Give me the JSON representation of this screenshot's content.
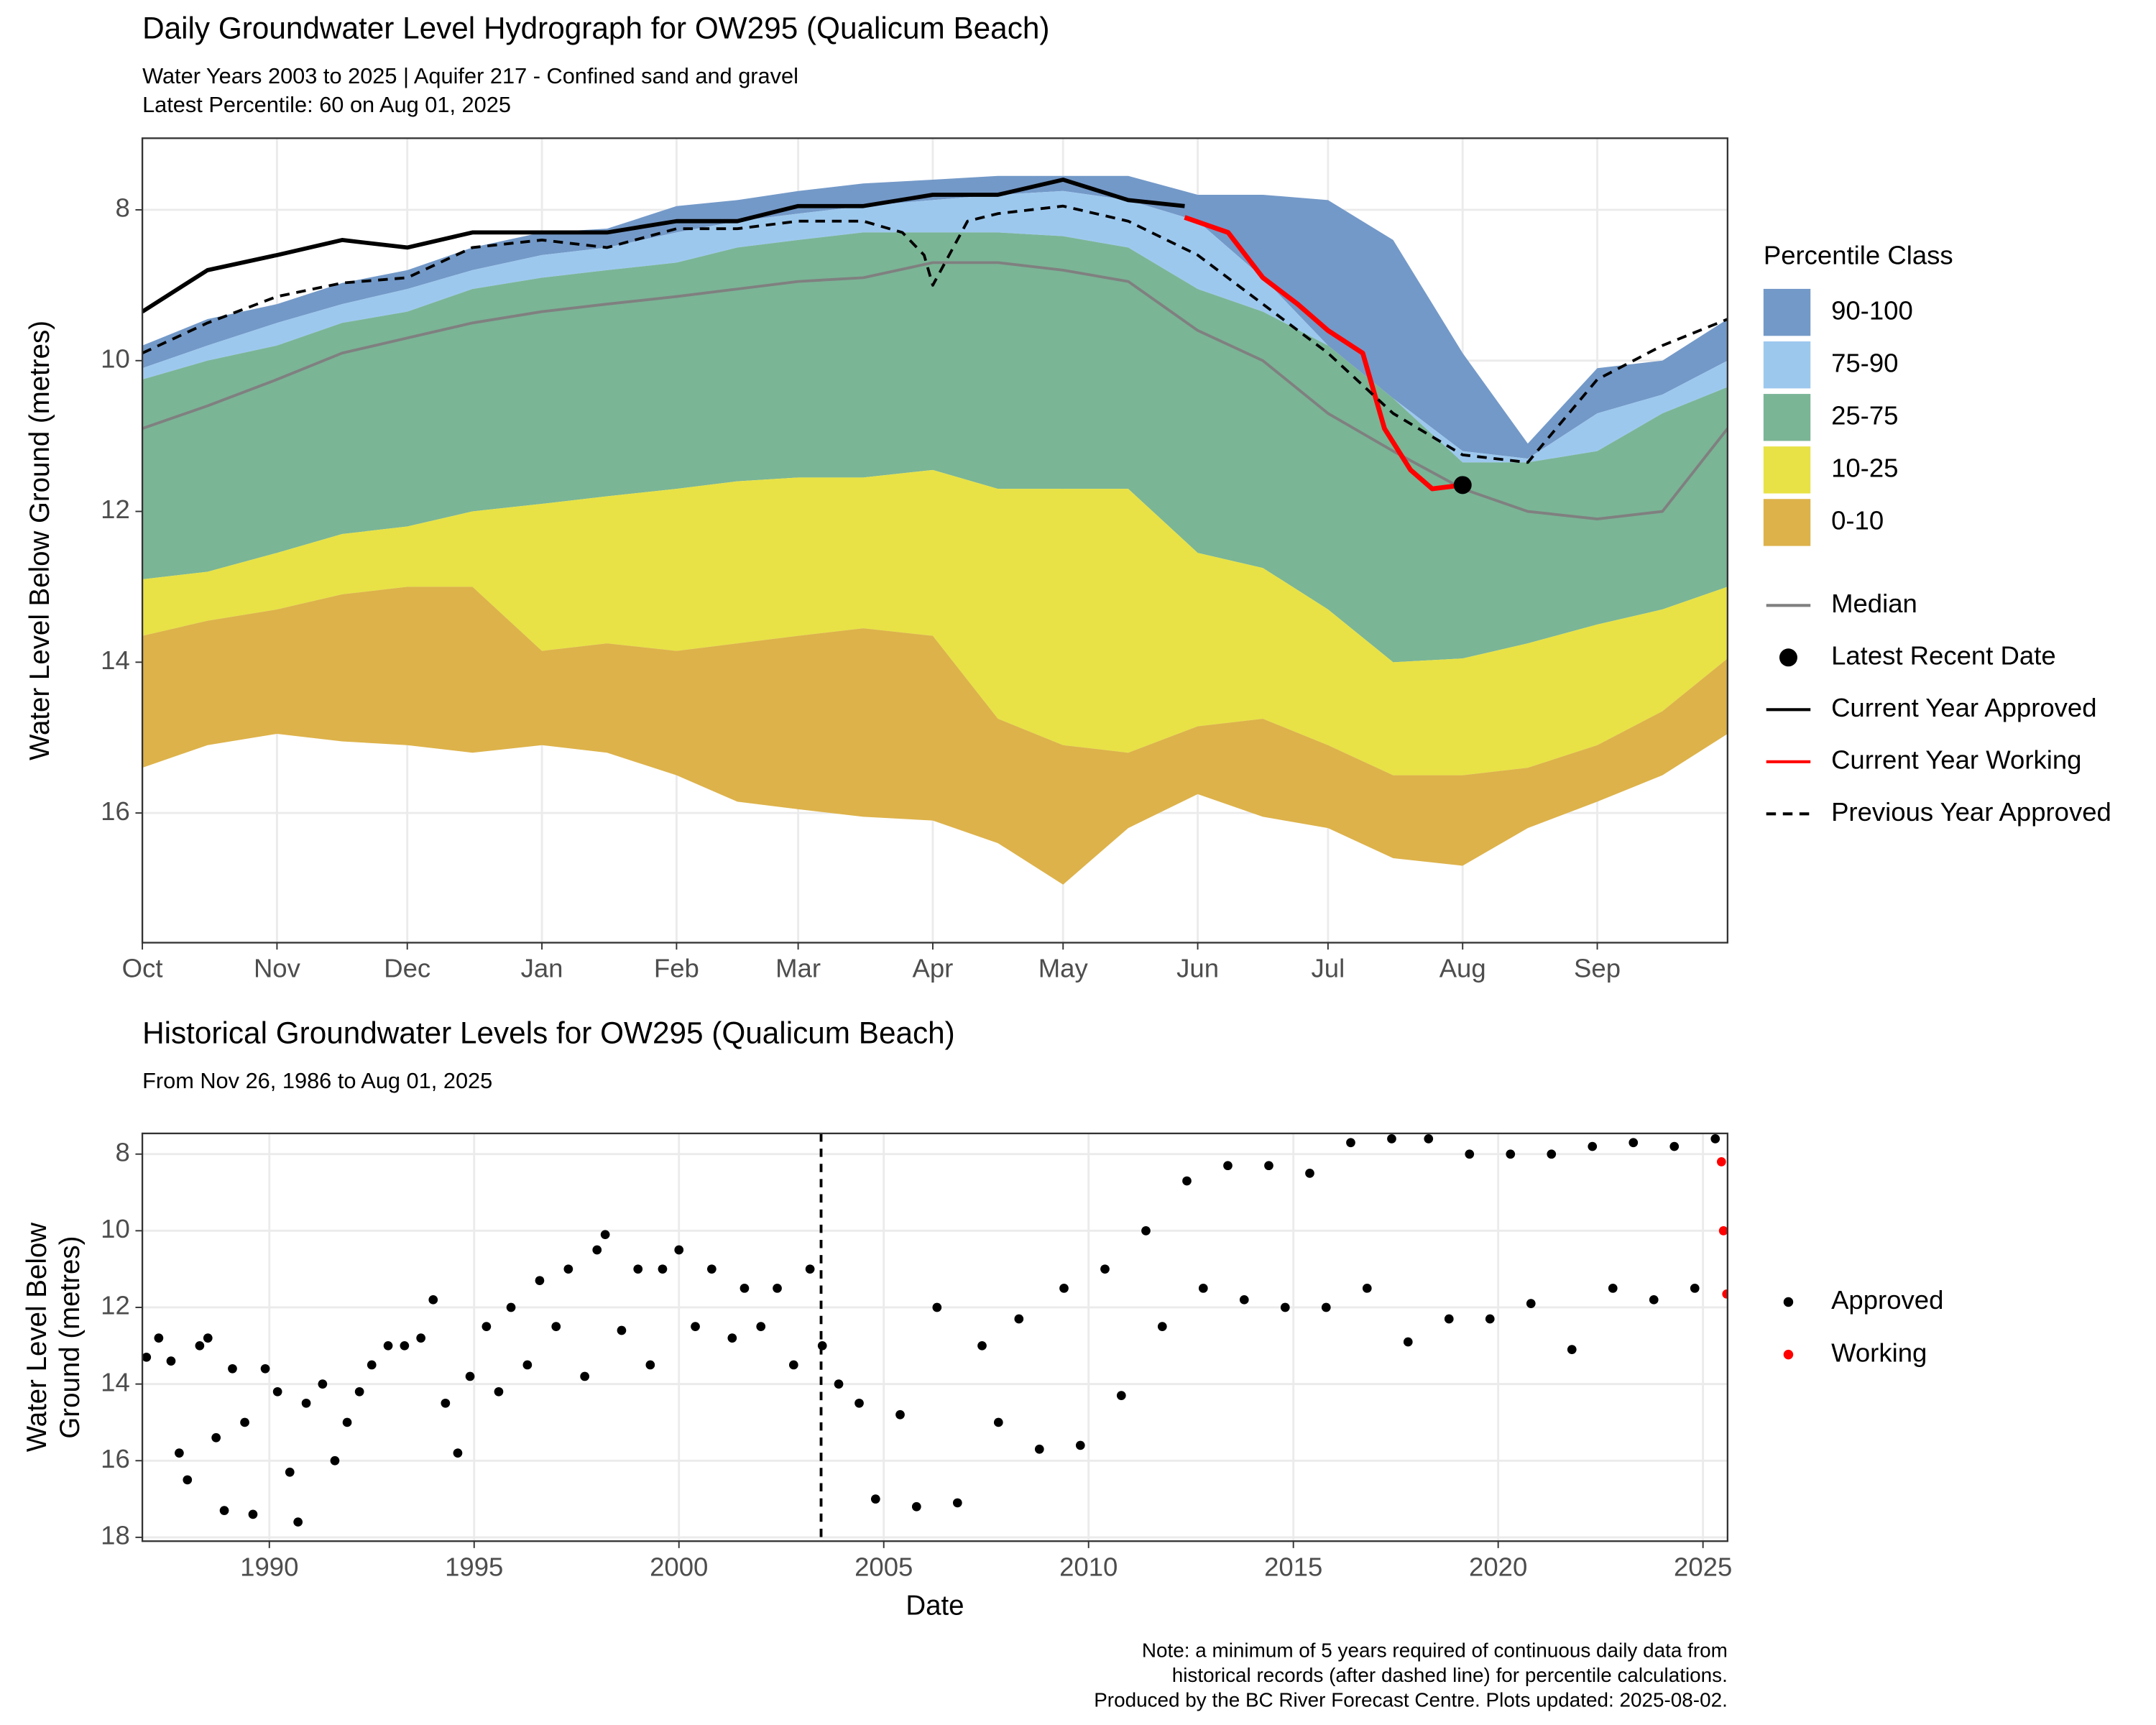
{
  "chart_data": [
    {
      "type": "area",
      "title": "Daily Groundwater Level Hydrograph for OW295 (Qualicum Beach)",
      "subtitle_lines": [
        "Water Years 2003 to 2025 | Aquifer 217 - Confined sand and gravel",
        "Latest Percentile: 60 on Aug 01, 2025"
      ],
      "y_label": "Water Level Below Ground (metres)",
      "xlim": [
        0,
        365
      ],
      "ylim": [
        17.72,
        7.05
      ],
      "xticks": [
        {
          "value": 0,
          "label": "Oct"
        },
        {
          "value": 31,
          "label": "Nov"
        },
        {
          "value": 61,
          "label": "Dec"
        },
        {
          "value": 92,
          "label": "Jan"
        },
        {
          "value": 123,
          "label": "Feb"
        },
        {
          "value": 151,
          "label": "Mar"
        },
        {
          "value": 182,
          "label": "Apr"
        },
        {
          "value": 212,
          "label": "May"
        },
        {
          "value": 243,
          "label": "Jun"
        },
        {
          "value": 273,
          "label": "Jul"
        },
        {
          "value": 304,
          "label": "Aug"
        },
        {
          "value": 335,
          "label": "Sep"
        }
      ],
      "yticks": [
        8,
        10,
        12,
        14,
        16
      ],
      "grid": true,
      "x": [
        0,
        15,
        31,
        46,
        61,
        76,
        92,
        107,
        123,
        137,
        151,
        166,
        182,
        197,
        212,
        227,
        243,
        258,
        273,
        288,
        304,
        319,
        335,
        350,
        365
      ],
      "legend_title": "Percentile Class",
      "bands": [
        {
          "name": "90-100",
          "color": "#7399c8",
          "values": [
            9.8,
            9.45,
            9.25,
            8.97,
            8.8,
            8.5,
            8.3,
            8.25,
            7.95,
            7.87,
            7.75,
            7.65,
            7.6,
            7.55,
            7.55,
            7.55,
            7.8,
            7.8,
            7.87,
            8.4,
            9.9,
            11.1,
            10.1,
            10,
            9.45
          ]
        },
        {
          "name": "75-90",
          "color": "#9dc8ee",
          "values": [
            10.1,
            9.8,
            9.5,
            9.25,
            9.05,
            8.8,
            8.6,
            8.5,
            8.3,
            8.15,
            8.05,
            7.95,
            7.87,
            7.8,
            7.75,
            7.87,
            8.15,
            8.9,
            9.8,
            10.5,
            11.2,
            11.3,
            10.7,
            10.45,
            10
          ]
        },
        {
          "name": "25-75",
          "color": "#7ab596",
          "values": [
            10.25,
            10,
            9.8,
            9.5,
            9.35,
            9.05,
            8.9,
            8.8,
            8.7,
            8.5,
            8.4,
            8.3,
            8.3,
            8.3,
            8.35,
            8.5,
            9.05,
            9.35,
            9.8,
            10.5,
            11.35,
            11.35,
            11.2,
            10.7,
            10.35
          ]
        },
        {
          "name": "10-25",
          "color": "#e8e246",
          "values": [
            12.9,
            12.8,
            12.55,
            12.3,
            12.2,
            12,
            11.9,
            11.8,
            11.7,
            11.6,
            11.55,
            11.55,
            11.45,
            11.7,
            11.7,
            11.7,
            12.55,
            12.75,
            13.3,
            14,
            13.95,
            13.75,
            13.5,
            13.3,
            13
          ]
        },
        {
          "name": "0-10",
          "color": "#ddb24a",
          "values": [
            13.65,
            13.45,
            13.3,
            13.1,
            13,
            13,
            13.85,
            13.75,
            13.85,
            13.75,
            13.65,
            13.55,
            13.65,
            14.75,
            15.1,
            15.2,
            14.85,
            14.75,
            15.1,
            15.5,
            15.5,
            15.4,
            15.1,
            14.65,
            13.95
          ],
          "lower": [
            15.4,
            15.1,
            14.95,
            15.05,
            15.1,
            15.2,
            15.1,
            15.2,
            15.5,
            15.85,
            15.95,
            16.05,
            16.1,
            16.4,
            16.95,
            16.2,
            15.75,
            16.05,
            16.2,
            16.6,
            16.7,
            16.2,
            15.85,
            15.5,
            14.95
          ]
        }
      ],
      "lines": [
        {
          "name": "Median",
          "color": "#808080",
          "width": 2,
          "values": [
            10.9,
            10.6,
            10.25,
            9.9,
            9.7,
            9.5,
            9.35,
            9.25,
            9.15,
            9.05,
            8.95,
            8.9,
            8.7,
            8.7,
            8.8,
            8.95,
            9.6,
            10,
            10.7,
            11.2,
            11.7,
            12,
            12.1,
            12,
            10.9
          ]
        },
        {
          "name": "Current Year Approved",
          "color": "#000000",
          "width": 3,
          "x": [
            0,
            15,
            31,
            46,
            61,
            76,
            92,
            107,
            123,
            137,
            151,
            166,
            182,
            197,
            212,
            227,
            240
          ],
          "values": [
            9.35,
            8.8,
            8.6,
            8.4,
            8.5,
            8.3,
            8.3,
            8.3,
            8.15,
            8.15,
            7.95,
            7.95,
            7.8,
            7.8,
            7.6,
            7.87,
            7.95
          ]
        },
        {
          "name": "Current Year Working",
          "color": "#ff0000",
          "width": 3.5,
          "x": [
            240,
            250,
            258,
            266,
            273,
            281,
            286,
            292,
            297,
            304
          ],
          "values": [
            8.1,
            8.3,
            8.9,
            9.25,
            9.6,
            9.9,
            10.9,
            11.45,
            11.7,
            11.65
          ]
        },
        {
          "name": "Previous Year Approved",
          "color": "#000000",
          "width": 2,
          "dash": true,
          "x": [
            0,
            15,
            31,
            46,
            61,
            76,
            92,
            107,
            123,
            137,
            151,
            166,
            175,
            180,
            182,
            190,
            197,
            212,
            227,
            243,
            258,
            273,
            288,
            304,
            319,
            335,
            350,
            365
          ],
          "values": [
            9.9,
            9.5,
            9.15,
            8.97,
            8.9,
            8.5,
            8.4,
            8.5,
            8.25,
            8.25,
            8.15,
            8.15,
            8.3,
            8.6,
            9,
            8.15,
            8.05,
            7.95,
            8.15,
            8.6,
            9.25,
            9.9,
            10.7,
            11.25,
            11.35,
            10.25,
            9.8,
            9.45
          ]
        }
      ],
      "point": {
        "name": "Latest Recent Date",
        "color": "#000000",
        "x": 304,
        "y": 11.65
      }
    },
    {
      "type": "scatter",
      "title": "Historical Groundwater Levels for OW295 (Qualicum Beach)",
      "subtitle": "From Nov 26, 1986 to Aug 01, 2025",
      "y_label_lines": [
        "Water Level Below",
        "Ground (metres)"
      ],
      "x_label": "Date",
      "xlim": [
        1986.9,
        2025.6
      ],
      "ylim": [
        18.1,
        7.46
      ],
      "xticks": [
        1990,
        1995,
        2000,
        2005,
        2010,
        2015,
        2020,
        2025
      ],
      "yticks": [
        8,
        10,
        12,
        14,
        16,
        18
      ],
      "grid": true,
      "cutoff_x": 2003.47,
      "series": [
        {
          "name": "Approved",
          "color": "#000000",
          "x": [
            1987.0,
            1987.3,
            1987.6,
            1987.8,
            1988.0,
            1988.3,
            1988.5,
            1988.7,
            1988.9,
            1989.1,
            1989.4,
            1989.6,
            1989.9,
            1990.2,
            1990.5,
            1990.7,
            1990.9,
            1991.3,
            1991.6,
            1991.9,
            1992.2,
            1992.5,
            1992.9,
            1993.3,
            1993.7,
            1994.0,
            1994.3,
            1994.6,
            1994.9,
            1995.3,
            1995.6,
            1995.9,
            1996.3,
            1996.6,
            1997.0,
            1997.3,
            1997.7,
            1998.0,
            1998.2,
            1998.6,
            1999.0,
            1999.3,
            1999.6,
            2000.0,
            2000.4,
            2000.8,
            2001.3,
            2001.6,
            2002.0,
            2002.4,
            2002.8,
            2003.2,
            2003.5,
            2003.9,
            2004.4,
            2004.8,
            2005.4,
            2005.8,
            2006.3,
            2006.8,
            2007.4,
            2007.8,
            2008.3,
            2008.8,
            2009.4,
            2009.8,
            2010.4,
            2010.8,
            2011.4,
            2011.8,
            2012.4,
            2012.8,
            2013.4,
            2013.8,
            2014.4,
            2014.8,
            2015.4,
            2015.8,
            2016.4,
            2016.8,
            2017.4,
            2017.8,
            2018.3,
            2018.8,
            2019.3,
            2019.8,
            2020.3,
            2020.8,
            2021.3,
            2021.8,
            2022.3,
            2022.8,
            2023.3,
            2023.8,
            2024.3,
            2024.8,
            2025.3
          ],
          "values": [
            13.3,
            12.8,
            13.4,
            15.8,
            16.5,
            13.0,
            12.8,
            15.4,
            17.3,
            13.6,
            15.0,
            17.4,
            13.6,
            14.2,
            16.3,
            17.6,
            14.5,
            14.0,
            16.0,
            15.0,
            14.2,
            13.5,
            13.0,
            13.0,
            12.8,
            11.8,
            14.5,
            15.8,
            13.8,
            12.5,
            14.2,
            12.0,
            13.5,
            11.3,
            12.5,
            11.0,
            13.8,
            10.5,
            10.1,
            12.6,
            11.0,
            13.5,
            11.0,
            10.5,
            12.5,
            11.0,
            12.8,
            11.5,
            12.5,
            11.5,
            13.5,
            11.0,
            13,
            14.0,
            14.5,
            17.0,
            14.8,
            17.2,
            12.0,
            17.1,
            13.0,
            15.0,
            12.3,
            15.7,
            11.5,
            15.6,
            11.0,
            14.3,
            10.0,
            12.5,
            8.7,
            11.5,
            8.3,
            11.8,
            8.3,
            12.0,
            8.5,
            12.0,
            7.7,
            11.5,
            7.6,
            12.9,
            7.6,
            12.3,
            8.0,
            12.3,
            8.0,
            11.9,
            8.0,
            13.1,
            7.8,
            11.5,
            7.7,
            11.8,
            7.8,
            11.5,
            7.6
          ]
        },
        {
          "name": "Working",
          "color": "#ff0000",
          "x": [
            2025.45,
            2025.5,
            2025.58
          ],
          "values": [
            8.2,
            10,
            11.65
          ]
        }
      ],
      "notes": [
        "Note: a minimum of 5 years required of continuous daily data from",
        "historical records (after dashed line) for percentile calculations.",
        "Produced by the BC River Forecast Centre. Plots updated: 2025-08-02."
      ]
    }
  ]
}
